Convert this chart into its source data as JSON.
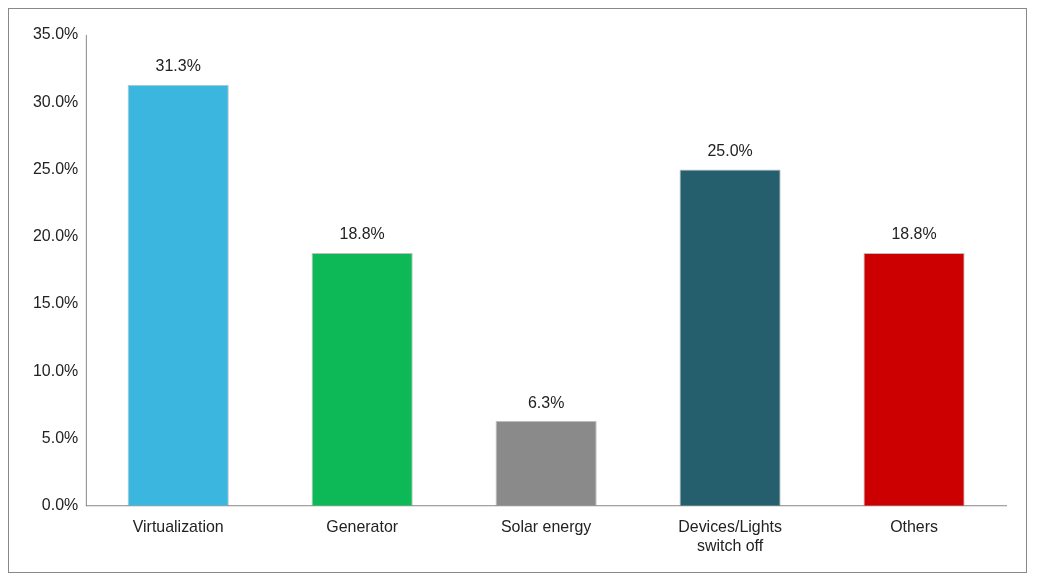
{
  "chart_data": {
    "type": "bar",
    "categories": [
      "Virtualization",
      "Generator",
      "Solar energy",
      "Devices/Lights switch off",
      "Others"
    ],
    "values": [
      31.3,
      18.8,
      6.3,
      25.0,
      18.8
    ],
    "colors": [
      "#3bb7df",
      "#0db956",
      "#8a8a8a",
      "#255f6e",
      "#cc0000"
    ],
    "value_labels": [
      "31.3%",
      "18.8%",
      "6.3%",
      "25.0%",
      "18.8%"
    ],
    "ylim": [
      0,
      35
    ],
    "yticks": [
      {
        "value": 0,
        "label": "0.0%"
      },
      {
        "value": 5,
        "label": "5.0%"
      },
      {
        "value": 10,
        "label": "10.0%"
      },
      {
        "value": 15,
        "label": "15.0%"
      },
      {
        "value": 20,
        "label": "20.0%"
      },
      {
        "value": 25,
        "label": "25.0%"
      },
      {
        "value": 30,
        "label": "30.0%"
      },
      {
        "value": 35,
        "label": "35.0%"
      }
    ],
    "grid": false,
    "legend": false
  }
}
